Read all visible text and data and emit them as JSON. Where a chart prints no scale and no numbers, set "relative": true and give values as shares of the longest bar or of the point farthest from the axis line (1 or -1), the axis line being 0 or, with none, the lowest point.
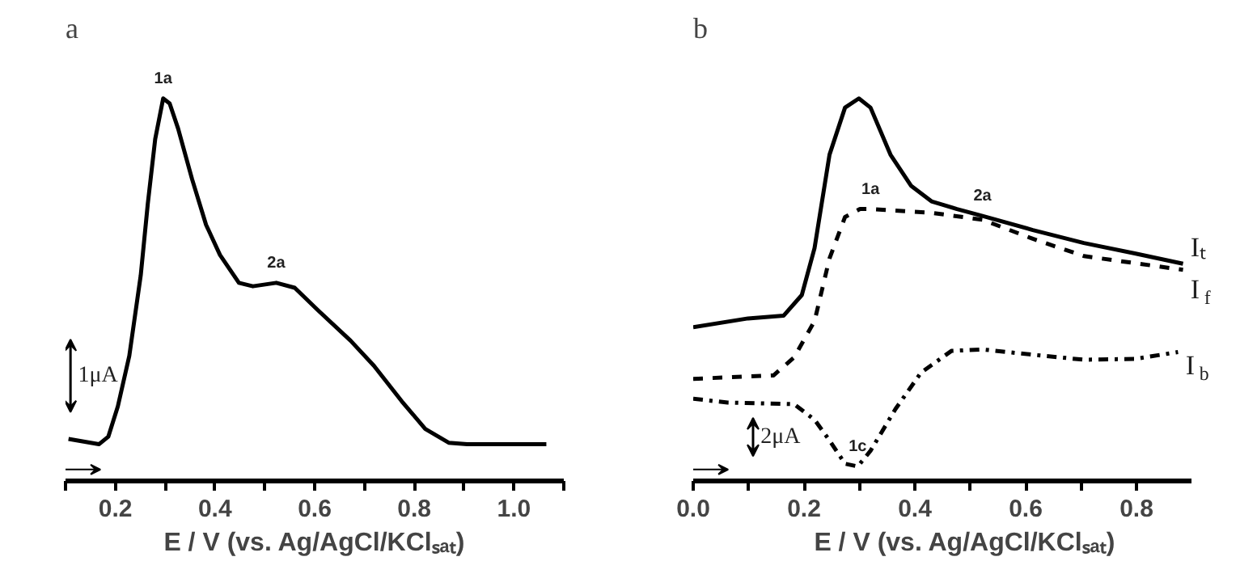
{
  "chart_data": [
    {
      "type": "line",
      "title": "a",
      "xlabel": "E / V (vs. Ag/AgCl/KClₛₐₜ)",
      "relative": true,
      "grid": false,
      "xlim": [
        0.1,
        1.1
      ],
      "xticks": [
        {
          "value": 0.1,
          "label": null
        },
        0.2,
        {
          "value": 0.3,
          "label": null
        },
        0.4,
        {
          "value": 0.5,
          "label": null
        },
        0.6,
        {
          "value": 0.7,
          "label": null
        },
        0.8,
        {
          "value": 0.9,
          "label": null
        },
        {
          "value": 1.0,
          "label": "1.0"
        },
        {
          "value": 1.1,
          "label": null
        }
      ],
      "series": [
        {
          "color": "#000000",
          "line_style": "solid",
          "x": [
            0.106,
            0.167,
            0.186,
            0.205,
            0.228,
            0.251,
            0.265,
            0.28,
            0.296,
            0.309,
            0.326,
            0.354,
            0.382,
            0.41,
            0.448,
            0.476,
            0.523,
            0.56,
            0.607,
            0.672,
            0.719,
            0.775,
            0.822,
            0.869,
            0.906,
            1.065
          ],
          "values": [
            0.11,
            0.096,
            0.116,
            0.195,
            0.327,
            0.538,
            0.723,
            0.894,
            1.0,
            0.987,
            0.921,
            0.789,
            0.67,
            0.591,
            0.518,
            0.509,
            0.518,
            0.505,
            0.446,
            0.367,
            0.301,
            0.208,
            0.136,
            0.1,
            0.096,
            0.096
          ]
        }
      ],
      "annotations": [
        {
          "text": "1a",
          "x": 0.296,
          "y": 1.0
        },
        {
          "text": "2a",
          "x": 0.523,
          "y": 0.518
        },
        "1μA"
      ]
    },
    {
      "type": "line",
      "title": "b",
      "xlabel": "E / V (vs. Ag/AgCl/KClₛₐₜ)",
      "relative": true,
      "grid": false,
      "xlim": [
        0.0,
        0.9
      ],
      "xticks": [
        {
          "value": 0.0,
          "label": "0.0"
        },
        {
          "value": 0.1,
          "label": null
        },
        0.2,
        {
          "value": 0.3,
          "label": null
        },
        0.4,
        {
          "value": 0.5,
          "label": null
        },
        0.6,
        {
          "value": 0.7,
          "label": null
        },
        0.8
      ],
      "series": [
        {
          "name": "Iₜ",
          "color": "#000000",
          "line_style": "solid",
          "x": [
            0.0,
            0.099,
            0.163,
            0.196,
            0.219,
            0.246,
            0.274,
            0.299,
            0.32,
            0.356,
            0.393,
            0.43,
            0.476,
            0.522,
            0.613,
            0.705,
            0.797,
            0.884
          ],
          "values": [
            0.402,
            0.425,
            0.432,
            0.486,
            0.609,
            0.853,
            0.976,
            1.0,
            0.976,
            0.853,
            0.772,
            0.731,
            0.711,
            0.693,
            0.656,
            0.622,
            0.595,
            0.568
          ]
        },
        {
          "name": "I$_{f}$",
          "color": "#000000",
          "line_style": "dashed",
          "x": [
            0.0,
            0.145,
            0.182,
            0.219,
            0.246,
            0.274,
            0.301,
            0.32,
            0.43,
            0.522,
            0.613,
            0.705,
            0.884
          ],
          "values": [
            0.267,
            0.276,
            0.323,
            0.418,
            0.582,
            0.69,
            0.711,
            0.711,
            0.701,
            0.683,
            0.633,
            0.588,
            0.552
          ]
        },
        {
          "name": "I$_{b}$",
          "color": "#000000",
          "line_style": "dashdot",
          "x": [
            0.0,
            0.062,
            0.182,
            0.219,
            0.246,
            0.274,
            0.297,
            0.32,
            0.365,
            0.411,
            0.466,
            0.522,
            0.613,
            0.705,
            0.797,
            0.875
          ],
          "values": [
            0.215,
            0.205,
            0.201,
            0.16,
            0.106,
            0.045,
            0.038,
            0.079,
            0.188,
            0.283,
            0.34,
            0.344,
            0.33,
            0.317,
            0.319,
            0.337
          ]
        }
      ],
      "annotations": [
        {
          "text": "1a",
          "x": 0.32,
          "y": 0.711
        },
        {
          "text": "2a",
          "x": 0.522,
          "y": 0.693
        },
        {
          "text": "1c",
          "x": 0.297,
          "y": 0.038
        },
        "2μA"
      ]
    }
  ]
}
